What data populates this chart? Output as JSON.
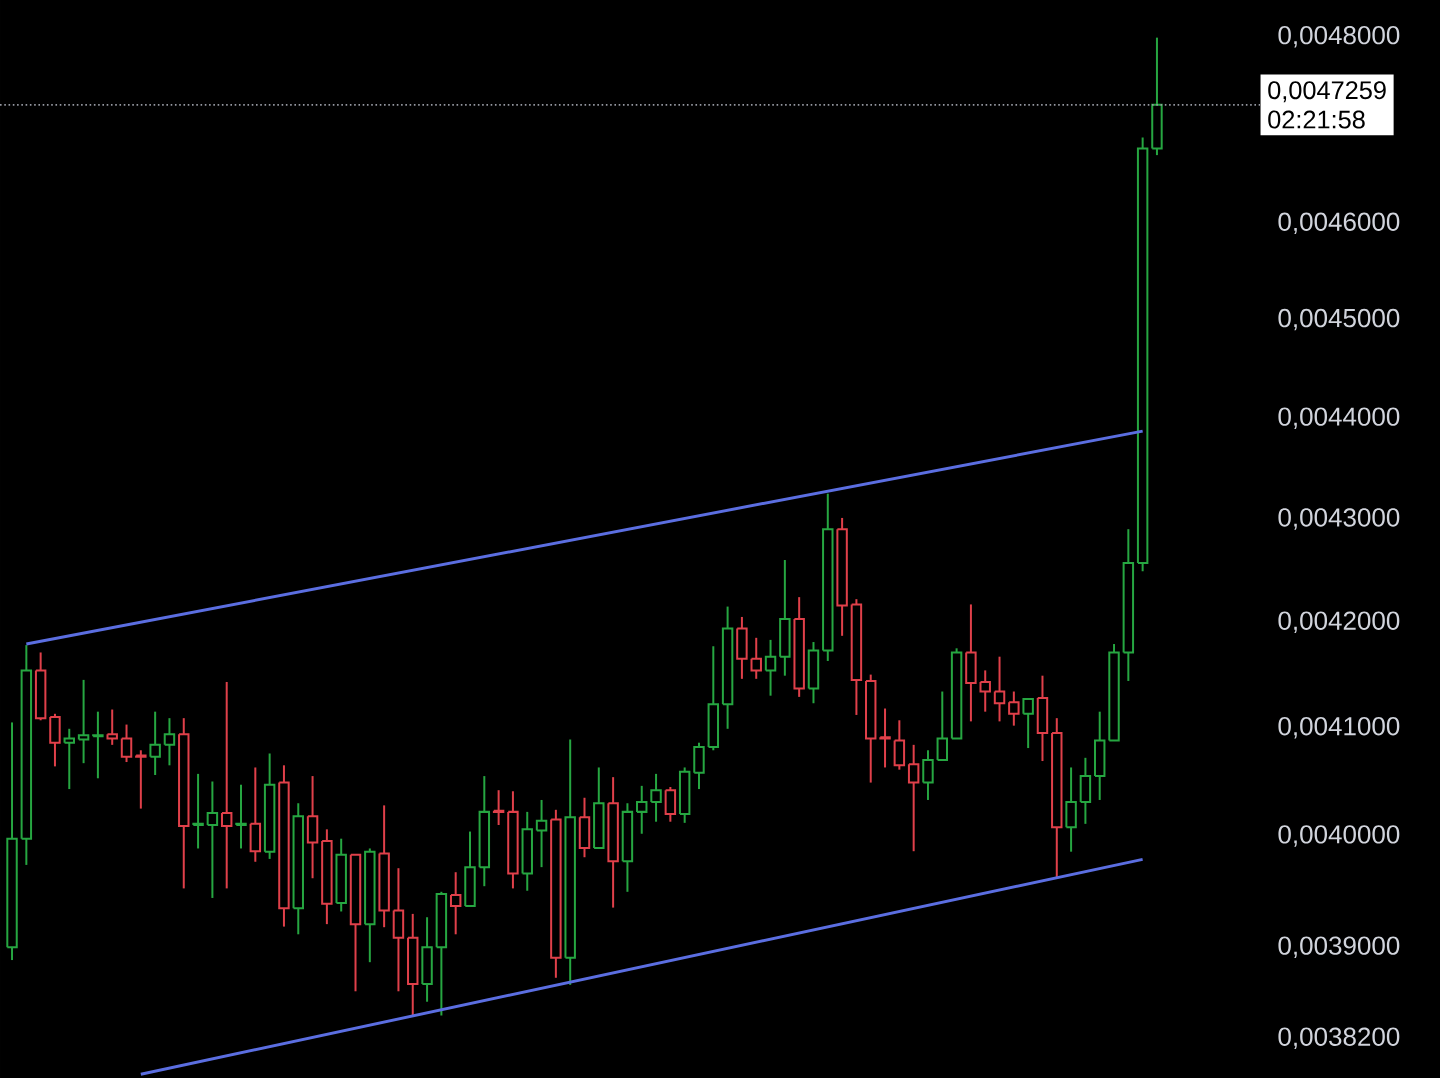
{
  "chart_data": {
    "type": "candlestick",
    "categories": [
      null,
      null,
      null,
      null,
      null,
      null,
      null,
      null,
      null,
      null,
      null,
      null,
      null,
      null,
      null,
      null,
      null,
      null,
      null,
      null,
      null,
      null,
      null,
      null,
      null,
      null,
      null,
      null,
      null,
      null,
      null,
      null,
      null,
      null,
      null,
      null,
      null,
      null,
      null,
      null,
      null,
      null,
      null,
      null,
      null,
      null,
      null,
      null,
      null,
      null,
      null,
      null,
      null,
      null,
      null,
      null,
      null,
      null,
      null,
      null,
      null,
      null,
      null,
      null,
      null,
      null,
      null,
      null,
      null,
      null,
      null,
      null,
      null,
      null,
      null,
      null,
      null,
      null,
      null,
      null,
      null
    ],
    "ohlc": [
      [
        0.0039,
        0.004105,
        0.003889,
        0.003998
      ],
      [
        0.003998,
        0.004178,
        0.003974,
        0.004154
      ],
      [
        0.004154,
        0.004171,
        0.004107,
        0.004109
      ],
      [
        0.00411,
        0.004113,
        0.004064,
        0.004086
      ],
      [
        0.004086,
        0.004099,
        0.004043,
        0.00409
      ],
      [
        0.004089,
        0.004145,
        0.004067,
        0.004093
      ],
      [
        0.004092,
        0.004115,
        0.004053,
        0.004093
      ],
      [
        0.004094,
        0.004117,
        0.004084,
        0.00409
      ],
      [
        0.00409,
        0.004103,
        0.004068,
        0.004073
      ],
      [
        0.004074,
        0.004079,
        0.004025,
        0.004073
      ],
      [
        0.004073,
        0.004115,
        0.004056,
        0.004084
      ],
      [
        0.004084,
        0.004109,
        0.004065,
        0.004094
      ],
      [
        0.004094,
        0.004109,
        0.003953,
        0.004009
      ],
      [
        0.00401,
        0.004057,
        0.003989,
        0.004011
      ],
      [
        0.00401,
        0.00405,
        0.003944,
        0.004021
      ],
      [
        0.004021,
        0.004143,
        0.003953,
        0.004009
      ],
      [
        0.00401,
        0.004047,
        0.003989,
        0.004011
      ],
      [
        0.004011,
        0.004063,
        0.003977,
        0.003987
      ],
      [
        0.003986,
        0.004076,
        0.00398,
        0.004047
      ],
      [
        0.004049,
        0.004065,
        0.003919,
        0.003935
      ],
      [
        0.003935,
        0.00403,
        0.003912,
        0.004018
      ],
      [
        0.004018,
        0.004055,
        0.003962,
        0.003995
      ],
      [
        0.003996,
        0.004006,
        0.003921,
        0.003939
      ],
      [
        0.00394,
        0.003998,
        0.003932,
        0.003983
      ],
      [
        0.003983,
        0.003983,
        0.003861,
        0.003921
      ],
      [
        0.003921,
        0.003989,
        0.003887,
        0.003986
      ],
      [
        0.003985,
        0.004028,
        0.003918,
        0.003933
      ],
      [
        0.003933,
        0.003971,
        0.003861,
        0.003909
      ],
      [
        0.003909,
        0.00393,
        0.003839,
        0.003868
      ],
      [
        0.003868,
        0.003927,
        0.003852,
        0.0039
      ],
      [
        0.0039,
        0.00395,
        0.00384,
        0.003948
      ],
      [
        0.003947,
        0.003968,
        0.003912,
        0.003937
      ],
      [
        0.003937,
        0.004004,
        0.003937,
        0.003972
      ],
      [
        0.003972,
        0.004055,
        0.003955,
        0.004022
      ],
      [
        0.004023,
        0.004042,
        0.00401,
        0.004022
      ],
      [
        0.004022,
        0.004041,
        0.003953,
        0.003966
      ],
      [
        0.003966,
        0.004022,
        0.003951,
        0.004006
      ],
      [
        0.004005,
        0.004033,
        0.003972,
        0.004014
      ],
      [
        0.004015,
        0.004024,
        0.003873,
        0.003891
      ],
      [
        0.003891,
        0.004089,
        0.003867,
        0.004017
      ],
      [
        0.004017,
        0.004035,
        0.003981,
        0.00399
      ],
      [
        0.00399,
        0.004063,
        0.00399,
        0.00403
      ],
      [
        0.00403,
        0.004054,
        0.003936,
        0.003978
      ],
      [
        0.003978,
        0.00403,
        0.00395,
        0.004022
      ],
      [
        0.004022,
        0.004046,
        0.004002,
        0.004031
      ],
      [
        0.004031,
        0.004057,
        0.004013,
        0.004042
      ],
      [
        0.004042,
        0.004045,
        0.004013,
        0.00402
      ],
      [
        0.00402,
        0.004063,
        0.004012,
        0.004059
      ],
      [
        0.004058,
        0.004086,
        0.004043,
        0.004082
      ],
      [
        0.004082,
        0.004177,
        0.004079,
        0.004122
      ],
      [
        0.004122,
        0.004215,
        0.004099,
        0.004194
      ],
      [
        0.004194,
        0.004205,
        0.004146,
        0.004165
      ],
      [
        0.004165,
        0.004185,
        0.004146,
        0.004154
      ],
      [
        0.004154,
        0.004183,
        0.00413,
        0.004167
      ],
      [
        0.004167,
        0.00426,
        0.004149,
        0.004203
      ],
      [
        0.004203,
        0.004224,
        0.004129,
        0.004137
      ],
      [
        0.004137,
        0.004181,
        0.004123,
        0.004173
      ],
      [
        0.004173,
        0.004325,
        0.004163,
        0.00429
      ],
      [
        0.00429,
        0.004301,
        0.004187,
        0.004216
      ],
      [
        0.004217,
        0.004222,
        0.004112,
        0.004145
      ],
      [
        0.004144,
        0.00415,
        0.004049,
        0.00409
      ],
      [
        0.004091,
        0.004118,
        0.004063,
        0.00409
      ],
      [
        0.004088,
        0.004107,
        0.004061,
        0.004065
      ],
      [
        0.004066,
        0.004084,
        0.003987,
        0.004049
      ],
      [
        0.004049,
        0.004079,
        0.004033,
        0.00407
      ],
      [
        0.00407,
        0.004134,
        0.00407,
        0.00409
      ],
      [
        0.00409,
        0.004175,
        0.00409,
        0.004171
      ],
      [
        0.004171,
        0.004217,
        0.004106,
        0.004142
      ],
      [
        0.004143,
        0.004154,
        0.004115,
        0.004134
      ],
      [
        0.004134,
        0.004167,
        0.004106,
        0.004123
      ],
      [
        0.004124,
        0.004134,
        0.004102,
        0.004113
      ],
      [
        0.004113,
        0.004127,
        0.004081,
        0.004127
      ],
      [
        0.004128,
        0.004149,
        0.004069,
        0.004095
      ],
      [
        0.004095,
        0.004109,
        0.003963,
        0.004008
      ],
      [
        0.004008,
        0.004063,
        0.003986,
        0.004031
      ],
      [
        0.004031,
        0.004072,
        0.004011,
        0.004055
      ],
      [
        0.004055,
        0.004115,
        0.004033,
        0.004088
      ],
      [
        0.004088,
        0.004179,
        0.004088,
        0.004171
      ],
      [
        0.004171,
        0.00429,
        0.004144,
        0.004257
      ],
      [
        0.004257,
        0.004691,
        0.004249,
        0.004679
      ],
      [
        0.004679,
        0.004799,
        0.004672,
        0.0047259
      ]
    ],
    "colors": [
      "#26a641",
      "#26a641",
      "#e0404a",
      "#e0404a",
      "#26a641",
      "#26a641",
      "#26a641",
      "#e0404a",
      "#e0404a",
      "#e0404a",
      "#26a641",
      "#26a641",
      "#e0404a",
      "#26a641",
      "#26a641",
      "#e0404a",
      "#26a641",
      "#e0404a",
      "#26a641",
      "#e0404a",
      "#26a641",
      "#e0404a",
      "#e0404a",
      "#26a641",
      "#e0404a",
      "#26a641",
      "#e0404a",
      "#e0404a",
      "#e0404a",
      "#26a641",
      "#26a641",
      "#e0404a",
      "#26a641",
      "#26a641",
      "#e0404a",
      "#e0404a",
      "#26a641",
      "#26a641",
      "#e0404a",
      "#26a641",
      "#e0404a",
      "#26a641",
      "#e0404a",
      "#26a641",
      "#26a641",
      "#26a641",
      "#e0404a",
      "#26a641",
      "#26a641",
      "#26a641",
      "#26a641",
      "#e0404a",
      "#e0404a",
      "#26a641",
      "#26a641",
      "#e0404a",
      "#26a641",
      "#26a641",
      "#e0404a",
      "#e0404a",
      "#e0404a",
      "#e0404a",
      "#e0404a",
      "#e0404a",
      "#26a641",
      "#26a641",
      "#26a641",
      "#e0404a",
      "#e0404a",
      "#e0404a",
      "#e0404a",
      "#26a641",
      "#e0404a",
      "#e0404a",
      "#26a641",
      "#26a641",
      "#26a641",
      "#26a641",
      "#26a641",
      "#26a641",
      "#26a641"
    ],
    "series": [
      {
        "type": "line",
        "values": [
          null,
          0.004179,
          null,
          null,
          null,
          null,
          null,
          null,
          null,
          null,
          null,
          null,
          null,
          null,
          null,
          null,
          null,
          null,
          null,
          null,
          null,
          null,
          null,
          null,
          null,
          null,
          null,
          null,
          null,
          null,
          null,
          null,
          null,
          null,
          null,
          null,
          null,
          null,
          null,
          null,
          null,
          null,
          null,
          null,
          null,
          null,
          null,
          null,
          null,
          null,
          null,
          null,
          null,
          null,
          null,
          null,
          null,
          null,
          null,
          null,
          null,
          null,
          null,
          null,
          null,
          null,
          null,
          null,
          null,
          null,
          null,
          null,
          null,
          null,
          null,
          null,
          null,
          null,
          null,
          0.004387,
          null
        ],
        "color": "#5b6ee1"
      },
      {
        "type": "line",
        "values": [
          null,
          null,
          null,
          null,
          null,
          null,
          null,
          null,
          null,
          0.003789,
          null,
          null,
          null,
          null,
          null,
          null,
          null,
          null,
          null,
          null,
          null,
          null,
          null,
          null,
          null,
          null,
          null,
          null,
          null,
          null,
          null,
          null,
          null,
          null,
          null,
          null,
          null,
          null,
          null,
          null,
          null,
          null,
          null,
          null,
          null,
          null,
          null,
          null,
          null,
          null,
          null,
          null,
          null,
          null,
          null,
          null,
          null,
          null,
          null,
          null,
          null,
          null,
          null,
          null,
          null,
          null,
          null,
          null,
          null,
          null,
          null,
          null,
          null,
          null,
          null,
          null,
          null,
          null,
          null,
          0.003979,
          null
        ],
        "color": "#5b6ee1"
      }
    ],
    "ylim": [
      0.003785,
      0.00484
    ],
    "yticks": [
      {
        "value": 0.00382,
        "label": "0,0038200"
      },
      {
        "value": 0.0039,
        "label": "0,0039000"
      },
      {
        "value": 0.004,
        "label": "0,0040000"
      },
      {
        "value": 0.0041,
        "label": "0,0041000"
      },
      {
        "value": 0.0042,
        "label": "0,0042000"
      },
      {
        "value": 0.0043,
        "label": "0,0043000"
      },
      {
        "value": 0.0044,
        "label": "0,0044000"
      },
      {
        "value": 0.0045,
        "label": "0,0045000"
      },
      {
        "value": 0.0046,
        "label": "0,0046000"
      },
      {
        "value": 0.0048,
        "label": "0,0048000"
      }
    ],
    "log": true,
    "tick_labels": "y",
    "ref_lines": [
      {
        "axis": "y",
        "value": 0.0047259,
        "label": "0,0047259",
        "color": "#9598a1",
        "line_style": "dotted"
      }
    ],
    "annotations": [
      "02:21:58"
    ]
  }
}
